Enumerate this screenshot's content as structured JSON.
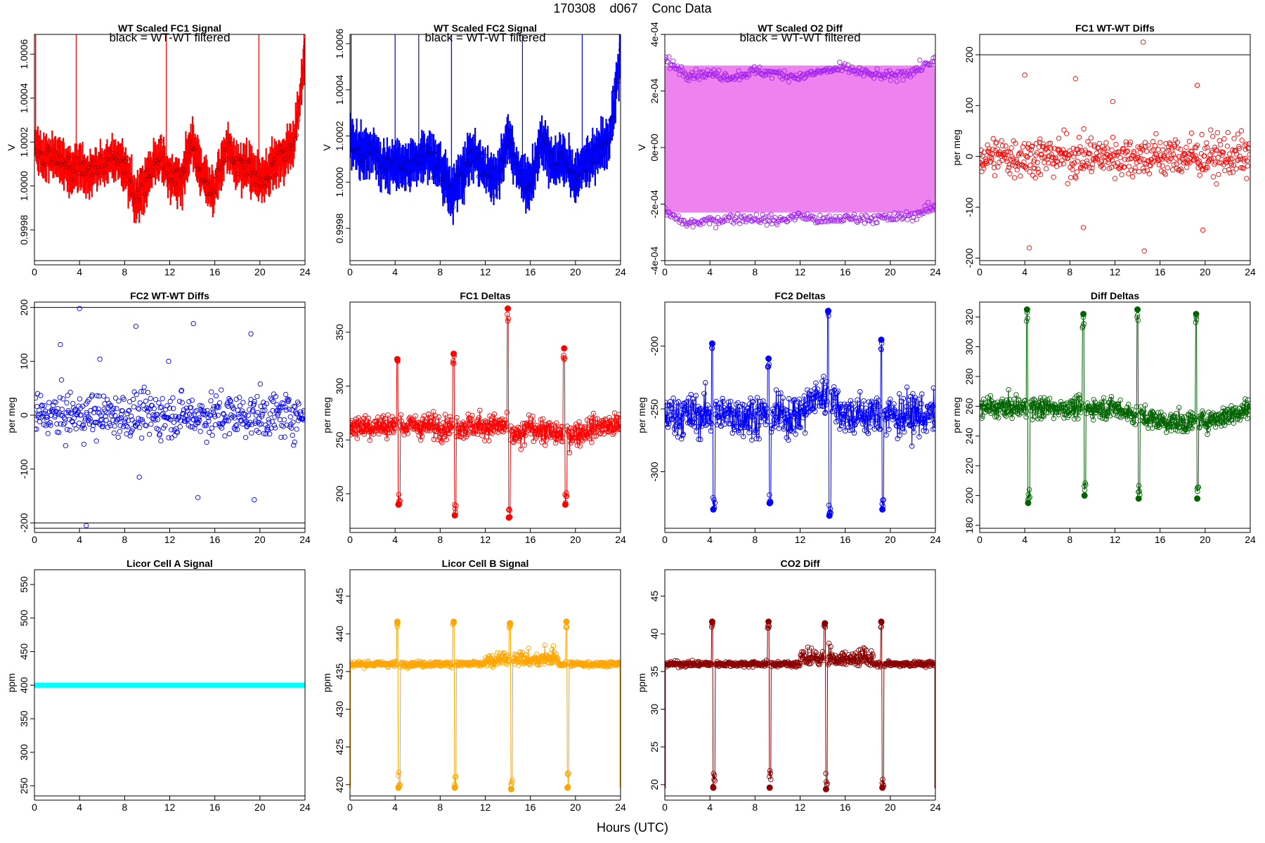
{
  "figure": {
    "title": "170308    d067    Conc Data",
    "xlabel": "Hours (UTC)"
  },
  "chart_data": [
    {
      "id": "fc1-signal",
      "type": "line",
      "title": "WT Scaled FC1 Signal",
      "annotation": "black = WT-WT filtered",
      "xlabel": "",
      "ylabel": "V",
      "xlim": [
        0,
        24
      ],
      "ylim": [
        0.99966,
        1.00069
      ],
      "xticks": [
        0,
        4,
        8,
        12,
        16,
        20,
        24
      ],
      "yticks": [
        0.9998,
        1.0,
        1.0002,
        1.0004,
        1.0006
      ],
      "ytick_labels": [
        "0.9998",
        "1.0000",
        "1.0002",
        "1.0004",
        "1.0006"
      ],
      "color": "#ff0000",
      "marker_color": "#8b0000",
      "style": "band",
      "base": 1.0001,
      "amp": 0.00012,
      "noise": 8e-05,
      "spikes": [
        0.1,
        3.7,
        11.7,
        19.9,
        23.9
      ],
      "series": [
        {
          "name": "",
          "x": [
            0,
            1,
            2,
            3,
            4,
            5,
            6,
            7,
            8,
            9,
            10,
            11,
            12,
            13,
            14,
            15,
            16,
            17,
            18,
            19,
            20,
            21,
            22,
            23,
            24
          ],
          "y": [
            1.00018,
            1.00012,
            1.00014,
            1.00006,
            1.00008,
            1.00006,
            1.0001,
            1.00012,
            1.00008,
            0.99994,
            1.00004,
            1.00014,
            1.00004,
            1.00002,
            1.0002,
            1.00004,
            0.99998,
            1.00018,
            1.00008,
            1.0001,
            1.00002,
            1.00008,
            1.00014,
            1.00018,
            1.0006
          ]
        }
      ]
    },
    {
      "id": "fc2-signal",
      "type": "line",
      "title": "WT Scaled FC2 Signal",
      "annotation": "black = WT-WT filtered",
      "xlabel": "",
      "ylabel": "V",
      "xlim": [
        0,
        24
      ],
      "ylim": [
        0.99966,
        1.00064
      ],
      "xticks": [
        0,
        4,
        8,
        12,
        16,
        20,
        24
      ],
      "yticks": [
        0.9998,
        1.0,
        1.0002,
        1.0004,
        1.0006
      ],
      "ytick_labels": [
        "0.9998",
        "1.0000",
        "1.0002",
        "1.0004",
        "1.0006"
      ],
      "color": "#0000ff",
      "marker_color": "#00008b",
      "style": "band",
      "base": 1.0001,
      "amp": 0.00012,
      "noise": 8e-05,
      "spikes": [
        0.1,
        4.0,
        6.1,
        9.0,
        15.3,
        20.6,
        23.9
      ],
      "series": [
        {
          "name": "",
          "x": [
            0,
            1,
            2,
            3,
            4,
            5,
            6,
            7,
            8,
            9,
            10,
            11,
            12,
            13,
            14,
            15,
            16,
            17,
            18,
            19,
            20,
            21,
            22,
            23,
            24
          ],
          "y": [
            1.00018,
            1.00012,
            1.00014,
            1.00006,
            1.00008,
            1.00006,
            1.0001,
            1.00012,
            1.00008,
            0.99994,
            1.00004,
            1.00014,
            1.00004,
            1.00002,
            1.0002,
            1.00004,
            0.99998,
            1.00018,
            1.00008,
            1.0001,
            1.00002,
            1.00008,
            1.00014,
            1.00018,
            1.00056
          ]
        }
      ]
    },
    {
      "id": "o2-diff",
      "type": "line",
      "title": "WT Scaled O2 Diff",
      "annotation": "black = WT-WT filtered",
      "xlabel": "",
      "ylabel": "V",
      "xlim": [
        0,
        24
      ],
      "ylim": [
        -0.0004,
        0.0004
      ],
      "xticks": [
        0,
        4,
        8,
        12,
        16,
        20,
        24
      ],
      "yticks": [
        -0.0004,
        -0.0002,
        0,
        0.0002,
        0.0004
      ],
      "ytick_labels": [
        "-4e-04",
        "-2e-04",
        "0e+00",
        "2e-04",
        "4e-04"
      ],
      "color": "#ee82ee",
      "marker_color": "#a020f0",
      "style": "twoband",
      "series": [
        {
          "name": "upper",
          "x": [
            0,
            2,
            4,
            6,
            8,
            10,
            12,
            14,
            16,
            18,
            20,
            22,
            24
          ],
          "y": [
            0.00031,
            0.00026,
            0.00026,
            0.00025,
            0.00027,
            0.00026,
            0.00025,
            0.00027,
            0.00028,
            0.00026,
            0.00025,
            0.00027,
            0.00031
          ]
        },
        {
          "name": "lower",
          "x": [
            0,
            2,
            4,
            6,
            8,
            10,
            12,
            14,
            16,
            18,
            20,
            22,
            24
          ],
          "y": [
            -0.00023,
            -0.00027,
            -0.00026,
            -0.00025,
            -0.00025,
            -0.00026,
            -0.00024,
            -0.00026,
            -0.00025,
            -0.00025,
            -0.00025,
            -0.00024,
            -0.00021
          ]
        }
      ]
    },
    {
      "id": "fc1-wtwt",
      "type": "scatter",
      "title": "FC1 WT-WT Diffs",
      "xlabel": "",
      "ylabel": "per meg",
      "xlim": [
        0,
        24
      ],
      "ylim": [
        -205,
        240
      ],
      "xticks": [
        0,
        4,
        8,
        12,
        16,
        20,
        24
      ],
      "yticks": [
        -200,
        -100,
        0,
        100,
        200
      ],
      "ytick_labels": [
        "-200",
        "-100",
        "0",
        "100",
        "200"
      ],
      "color": "#ff0000",
      "hlines": [
        200
      ],
      "n": 520,
      "spread": 32,
      "outliers": [
        [
          4.0,
          160
        ],
        [
          4.4,
          -180
        ],
        [
          8.5,
          153
        ],
        [
          9.2,
          -140
        ],
        [
          14.5,
          225
        ],
        [
          14.6,
          -186
        ],
        [
          19.3,
          140
        ],
        [
          19.8,
          -145
        ],
        [
          11.8,
          108
        ]
      ]
    },
    {
      "id": "fc2-wtwt",
      "type": "scatter",
      "title": "FC2 WT-WT Diffs",
      "xlabel": "",
      "ylabel": "per meg",
      "xlim": [
        0,
        24
      ],
      "ylim": [
        -210,
        210
      ],
      "xticks": [
        0,
        4,
        8,
        12,
        16,
        20,
        24
      ],
      "yticks": [
        -200,
        -100,
        0,
        100,
        200
      ],
      "ytick_labels": [
        "-200",
        "-100",
        "0",
        "100",
        "200"
      ],
      "color": "#0000ff",
      "hlines": [
        200,
        -200
      ],
      "n": 520,
      "spread": 32,
      "outliers": [
        [
          4.0,
          198
        ],
        [
          4.6,
          -205
        ],
        [
          2.3,
          131
        ],
        [
          5.8,
          104
        ],
        [
          9.0,
          165
        ],
        [
          9.3,
          -115
        ],
        [
          14.1,
          170
        ],
        [
          14.5,
          -153
        ],
        [
          19.2,
          151
        ],
        [
          19.5,
          -157
        ],
        [
          11.9,
          100
        ]
      ]
    },
    {
      "id": "fc1-deltas",
      "type": "line",
      "title": "FC1 Deltas",
      "xlabel": "",
      "ylabel": "per meg",
      "xlim": [
        0,
        24
      ],
      "ylim": [
        168,
        378
      ],
      "xticks": [
        0,
        4,
        8,
        12,
        16,
        20,
        24
      ],
      "yticks": [
        200,
        250,
        300,
        350
      ],
      "ytick_labels": [
        "200",
        "250",
        "300",
        "350"
      ],
      "color": "#ff0000",
      "base": 263,
      "noise": 8,
      "drift": [
        [
          13.8,
          16,
          -10
        ],
        [
          16,
          22,
          -8
        ]
      ],
      "events": [
        [
          4.2,
          325,
          190
        ],
        [
          9.2,
          330,
          180
        ],
        [
          14.0,
          372,
          178
        ],
        [
          19.0,
          335,
          190
        ]
      ]
    },
    {
      "id": "fc2-deltas",
      "type": "line",
      "title": "FC2 Deltas",
      "xlabel": "",
      "ylabel": "per meg",
      "xlim": [
        0,
        24
      ],
      "ylim": [
        -345,
        -165
      ],
      "xticks": [
        0,
        4,
        8,
        12,
        16,
        20,
        24
      ],
      "yticks": [
        -300,
        -250,
        -200
      ],
      "ytick_labels": [
        "-300",
        "-250",
        "-200"
      ],
      "color": "#0000ff",
      "base": -255,
      "noise": 12,
      "drift": [
        [
          12,
          16,
          15
        ]
      ],
      "events": [
        [
          4.2,
          -198,
          -330
        ],
        [
          9.2,
          -210,
          -325
        ],
        [
          14.5,
          -172,
          -335
        ],
        [
          19.2,
          -195,
          -330
        ]
      ]
    },
    {
      "id": "diff-deltas",
      "type": "line",
      "title": "Diff Deltas",
      "xlabel": "",
      "ylabel": "per meg",
      "xlim": [
        0,
        24
      ],
      "ylim": [
        178,
        330
      ],
      "xticks": [
        0,
        4,
        8,
        12,
        16,
        20,
        24
      ],
      "yticks": [
        180,
        200,
        220,
        240,
        260,
        280,
        300,
        320
      ],
      "ytick_labels": [
        "180",
        "200",
        "220",
        "240",
        "260",
        "280",
        "300",
        "320"
      ],
      "color": "#006400",
      "base": 259,
      "noise": 5,
      "drift": [
        [
          12,
          24,
          -10
        ]
      ],
      "events": [
        [
          4.2,
          325,
          195
        ],
        [
          9.2,
          322,
          200
        ],
        [
          14.0,
          325,
          198
        ],
        [
          19.2,
          322,
          198
        ]
      ]
    },
    {
      "id": "licor-a",
      "type": "line",
      "title": "Licor Cell A Signal",
      "xlabel": "",
      "ylabel": "ppm",
      "xlim": [
        0,
        24
      ],
      "ylim": [
        235,
        572
      ],
      "xticks": [
        0,
        4,
        8,
        12,
        16,
        20,
        24
      ],
      "yticks": [
        250,
        300,
        350,
        400,
        450,
        500,
        550
      ],
      "ytick_labels": [
        "250",
        "300",
        "350",
        "400",
        "450",
        "500",
        "550"
      ],
      "color": "#00ffff",
      "style": "flat",
      "value": 400
    },
    {
      "id": "licor-b",
      "type": "line",
      "title": "Licor Cell B Signal",
      "xlabel": "",
      "ylabel": "ppm",
      "xlim": [
        0,
        24
      ],
      "ylim": [
        418.5,
        448.5
      ],
      "xticks": [
        0,
        4,
        8,
        12,
        16,
        20,
        24
      ],
      "yticks": [
        420,
        425,
        430,
        435,
        440,
        445
      ],
      "ytick_labels": [
        "420",
        "425",
        "430",
        "435",
        "440",
        "445"
      ],
      "color": "#ffa500",
      "base": 436,
      "noise": 0.25,
      "events": [
        [
          4.2,
          441.6,
          419.6
        ],
        [
          9.2,
          441.6,
          419.6
        ],
        [
          14.2,
          441.4,
          419.4
        ],
        [
          19.2,
          441.6,
          419.6
        ]
      ],
      "bumps": [
        [
          12,
          18.5,
          1.2
        ]
      ],
      "endspikes": [
        0.05,
        23.95
      ]
    },
    {
      "id": "co2-diff",
      "type": "line",
      "title": "CO2 Diff",
      "xlabel": "",
      "ylabel": "ppm",
      "xlim": [
        0,
        24
      ],
      "ylim": [
        18.5,
        48.5
      ],
      "xticks": [
        0,
        4,
        8,
        12,
        16,
        20,
        24
      ],
      "yticks": [
        20,
        25,
        30,
        35,
        40,
        45
      ],
      "ytick_labels": [
        "20",
        "25",
        "30",
        "35",
        "40",
        "45"
      ],
      "color": "#8b0000",
      "base": 36,
      "noise": 0.25,
      "events": [
        [
          4.2,
          41.6,
          19.6
        ],
        [
          9.2,
          41.6,
          19.6
        ],
        [
          14.2,
          41.4,
          19.4
        ],
        [
          19.2,
          41.6,
          19.6
        ]
      ],
      "bumps": [
        [
          12,
          18.5,
          1.2
        ]
      ],
      "endspikes": [
        0.05,
        23.95
      ]
    }
  ]
}
